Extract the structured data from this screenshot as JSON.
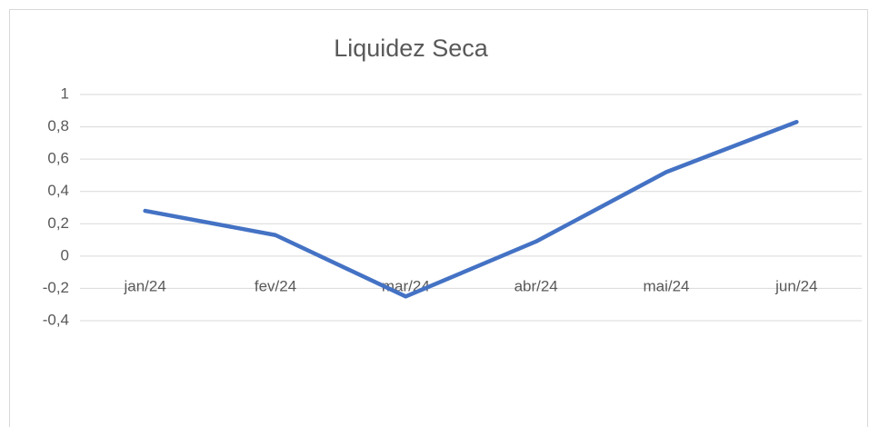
{
  "chart_data": {
    "type": "line",
    "title": "Liquidez Seca",
    "categories": [
      "jan/24",
      "fev/24",
      "mar/24",
      "abr/24",
      "mai/24",
      "jun/24"
    ],
    "series": [
      {
        "name": "Liquidez Seca",
        "color": "#4472c4",
        "values": [
          0.28,
          0.13,
          -0.25,
          0.09,
          0.52,
          0.83
        ]
      }
    ],
    "ylim": [
      -0.4,
      1
    ],
    "yticks": [
      {
        "value": -0.4,
        "label": "-0,4"
      },
      {
        "value": -0.2,
        "label": "-0,2"
      },
      0,
      {
        "value": 0.2,
        "label": "0,2"
      },
      {
        "value": 0.4,
        "label": "0,4"
      },
      {
        "value": 0.6,
        "label": "0,6"
      },
      {
        "value": 0.8,
        "label": "0,8"
      },
      1
    ],
    "grid": true
  }
}
